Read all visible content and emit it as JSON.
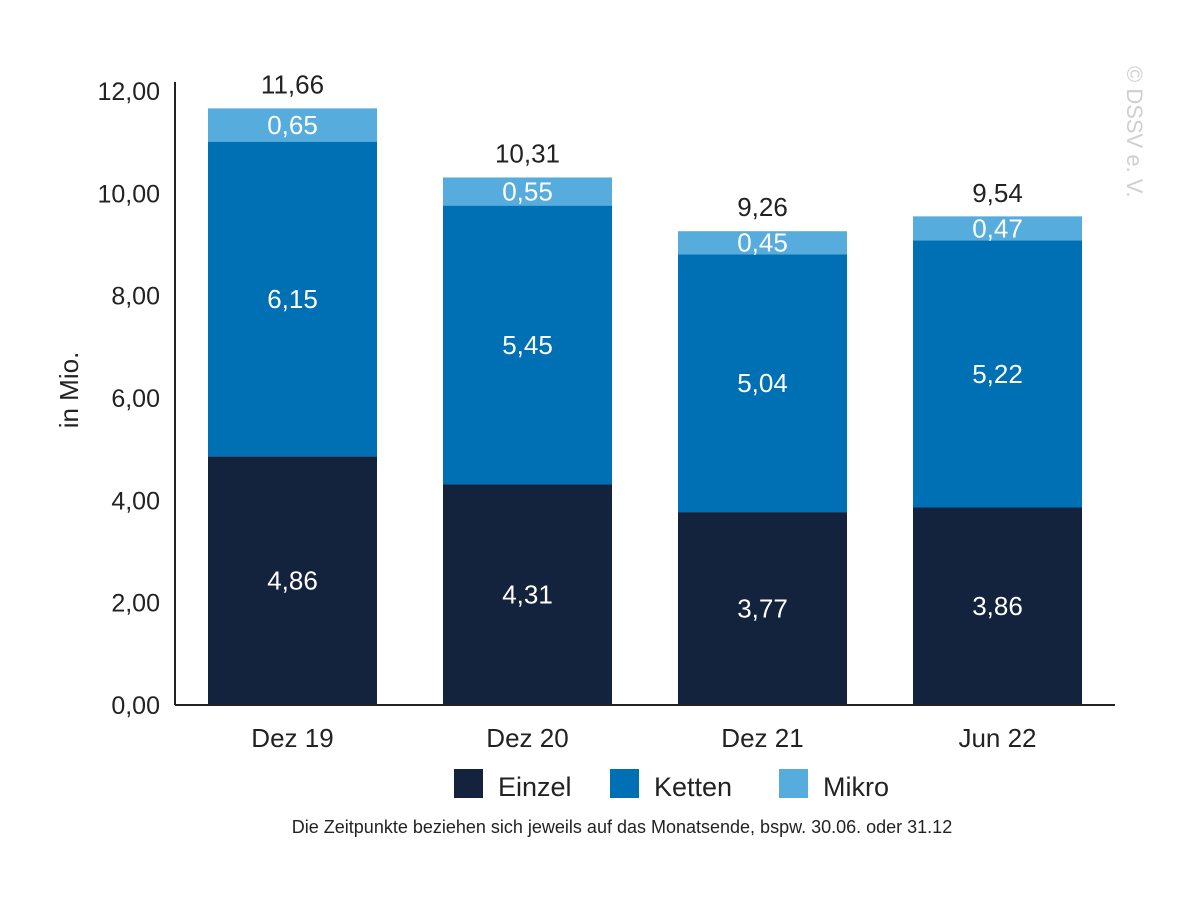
{
  "chart_data": {
    "type": "bar",
    "stacked": true,
    "categories": [
      "Dez 19",
      "Dez 20",
      "Dez 21",
      "Jun 22"
    ],
    "series": [
      {
        "name": "Einzel",
        "values": [
          4.86,
          4.31,
          3.77,
          3.86
        ],
        "color": "#13223d",
        "label_color": "#ffffff"
      },
      {
        "name": "Ketten",
        "values": [
          6.15,
          5.45,
          5.04,
          5.22
        ],
        "color": "#0070b4",
        "label_color": "#ffffff"
      },
      {
        "name": "Mikro",
        "values": [
          0.65,
          0.55,
          0.45,
          0.47
        ],
        "color": "#56acdd",
        "label_color": "#ffffff"
      }
    ],
    "totals": [
      11.66,
      10.31,
      9.26,
      9.54
    ],
    "value_labels": [
      [
        "4,86",
        "4,31",
        "3,77",
        "3,86"
      ],
      [
        "6,15",
        "5,45",
        "5,04",
        "5,22"
      ],
      [
        "0,65",
        "0,55",
        "0,45",
        "0,47"
      ]
    ],
    "total_labels": [
      "11,66",
      "10,31",
      "9,26",
      "9,54"
    ],
    "ylabel": "in Mio.",
    "ylim": [
      0,
      12
    ],
    "yticks": [
      0,
      2,
      4,
      6,
      8,
      10,
      12
    ],
    "ytick_labels": [
      "0,00",
      "2,00",
      "4,00",
      "6,00",
      "8,00",
      "10,00",
      "12,00"
    ],
    "grid": false,
    "legend_position": "bottom",
    "footnote": "Die Zeitpunkte beziehen sich jeweils auf das Monatsende, bspw. 30.06. oder 31.12",
    "copyright": "© DSSV e. V."
  }
}
